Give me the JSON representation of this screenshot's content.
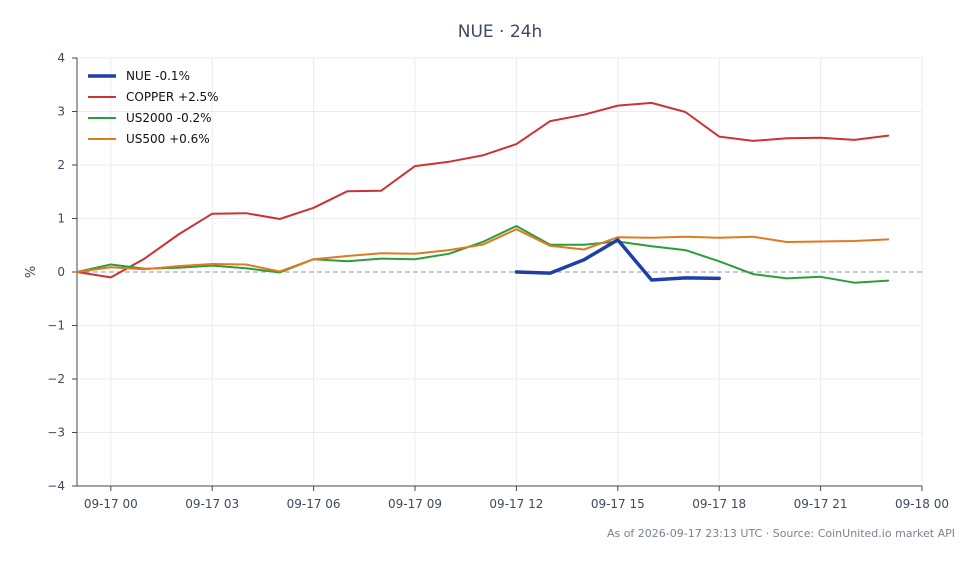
{
  "chart_data": {
    "type": "line",
    "title": "NUE · 24h",
    "ylabel": "%",
    "xlabel": "",
    "ylim": [
      -4,
      4
    ],
    "xlim": [
      "09-16 23:00",
      "09-18 00:00"
    ],
    "yticks": [
      -4,
      -3,
      -2,
      -1,
      0,
      1,
      2,
      3,
      4
    ],
    "ytick_labels": [
      "−4",
      "−3",
      "−2",
      "−1",
      "0",
      "1",
      "2",
      "3",
      "4"
    ],
    "xtick_labels": [
      "09-17 00",
      "09-17 03",
      "09-17 06",
      "09-17 09",
      "09-17 12",
      "09-17 15",
      "09-17 18",
      "09-17 21",
      "09-18 00"
    ],
    "grid": true,
    "zero_line": true,
    "legend_position": "top-left",
    "series": [
      {
        "name": "NUE -0.1%",
        "color": "#1f3fa6",
        "points": [
          [
            "09-17 12:00",
            0.0
          ],
          [
            "09-17 13:00",
            -0.02
          ],
          [
            "09-17 14:00",
            0.23
          ],
          [
            "09-17 15:00",
            0.6
          ],
          [
            "09-17 16:00",
            -0.15
          ],
          [
            "09-17 17:00",
            -0.11
          ],
          [
            "09-17 18:00",
            -0.12
          ]
        ]
      },
      {
        "name": "COPPER +2.5%",
        "color": "#cc3333",
        "points": [
          [
            "09-16 23:00",
            0.0
          ],
          [
            "09-17 00:00",
            -0.1
          ],
          [
            "09-17 01:00",
            0.25
          ],
          [
            "09-17 02:00",
            0.7
          ],
          [
            "09-17 03:00",
            1.09
          ],
          [
            "09-17 04:00",
            1.1
          ],
          [
            "09-17 05:00",
            0.99
          ],
          [
            "09-17 06:00",
            1.2
          ],
          [
            "09-17 07:00",
            1.51
          ],
          [
            "09-17 08:00",
            1.52
          ],
          [
            "09-17 09:00",
            1.98
          ],
          [
            "09-17 10:00",
            2.06
          ],
          [
            "09-17 11:00",
            2.18
          ],
          [
            "09-17 12:00",
            2.39
          ],
          [
            "09-17 13:00",
            2.82
          ],
          [
            "09-17 14:00",
            2.94
          ],
          [
            "09-17 15:00",
            3.11
          ],
          [
            "09-17 16:00",
            3.16
          ],
          [
            "09-17 17:00",
            2.99
          ],
          [
            "09-17 18:00",
            2.53
          ],
          [
            "09-17 19:00",
            2.45
          ],
          [
            "09-17 20:00",
            2.5
          ],
          [
            "09-17 21:00",
            2.51
          ],
          [
            "09-17 22:00",
            2.47
          ],
          [
            "09-17 23:00",
            2.55
          ]
        ]
      },
      {
        "name": "US2000 -0.2%",
        "color": "#2a9d3c",
        "points": [
          [
            "09-16 23:00",
            0.0
          ],
          [
            "09-17 00:00",
            0.14
          ],
          [
            "09-17 01:00",
            0.06
          ],
          [
            "09-17 02:00",
            0.08
          ],
          [
            "09-17 03:00",
            0.12
          ],
          [
            "09-17 04:00",
            0.07
          ],
          [
            "09-17 05:00",
            -0.01
          ],
          [
            "09-17 06:00",
            0.24
          ],
          [
            "09-17 07:00",
            0.2
          ],
          [
            "09-17 08:00",
            0.25
          ],
          [
            "09-17 09:00",
            0.24
          ],
          [
            "09-17 10:00",
            0.34
          ],
          [
            "09-17 11:00",
            0.56
          ],
          [
            "09-17 12:00",
            0.86
          ],
          [
            "09-17 13:00",
            0.51
          ],
          [
            "09-17 14:00",
            0.51
          ],
          [
            "09-17 15:00",
            0.57
          ],
          [
            "09-17 16:00",
            0.48
          ],
          [
            "09-17 17:00",
            0.41
          ],
          [
            "09-17 18:00",
            0.2
          ],
          [
            "09-17 19:00",
            -0.04
          ],
          [
            "09-17 20:00",
            -0.12
          ],
          [
            "09-17 21:00",
            -0.09
          ],
          [
            "09-17 22:00",
            -0.2
          ],
          [
            "09-17 23:00",
            -0.16
          ]
        ]
      },
      {
        "name": "US500 +0.6%",
        "color": "#e07a1f",
        "points": [
          [
            "09-16 23:00",
            0.0
          ],
          [
            "09-17 00:00",
            0.09
          ],
          [
            "09-17 01:00",
            0.05
          ],
          [
            "09-17 02:00",
            0.11
          ],
          [
            "09-17 03:00",
            0.15
          ],
          [
            "09-17 04:00",
            0.14
          ],
          [
            "09-17 05:00",
            0.01
          ],
          [
            "09-17 06:00",
            0.24
          ],
          [
            "09-17 07:00",
            0.3
          ],
          [
            "09-17 08:00",
            0.35
          ],
          [
            "09-17 09:00",
            0.34
          ],
          [
            "09-17 10:00",
            0.41
          ],
          [
            "09-17 11:00",
            0.51
          ],
          [
            "09-17 12:00",
            0.8
          ],
          [
            "09-17 13:00",
            0.49
          ],
          [
            "09-17 14:00",
            0.42
          ],
          [
            "09-17 15:00",
            0.65
          ],
          [
            "09-17 16:00",
            0.64
          ],
          [
            "09-17 17:00",
            0.66
          ],
          [
            "09-17 18:00",
            0.64
          ],
          [
            "09-17 19:00",
            0.66
          ],
          [
            "09-17 20:00",
            0.56
          ],
          [
            "09-17 21:00",
            0.57
          ],
          [
            "09-17 22:00",
            0.58
          ],
          [
            "09-17 23:00",
            0.61
          ]
        ]
      }
    ]
  },
  "footer": "As of 2026-09-17 23:13 UTC · Source: CoinUnited.io market API"
}
